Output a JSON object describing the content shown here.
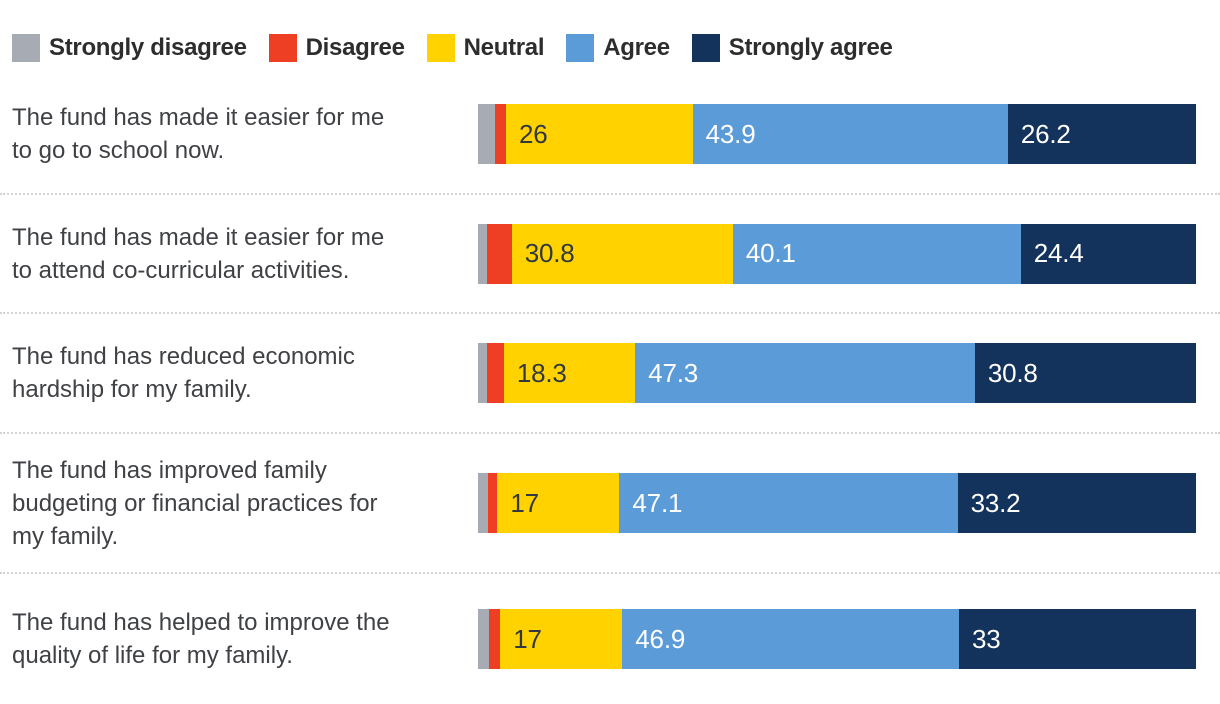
{
  "legend": {
    "items": [
      {
        "name": "strongly-disagree",
        "label": "Strongly disagree",
        "color": "#a6abb4"
      },
      {
        "name": "disagree",
        "label": "Disagree",
        "color": "#ee3e23"
      },
      {
        "name": "neutral",
        "label": "Neutral",
        "color": "#ffd200"
      },
      {
        "name": "agree",
        "label": "Agree",
        "color": "#5b9bd8"
      },
      {
        "name": "strongly-agree",
        "label": "Strongly agree",
        "color": "#14335c"
      }
    ]
  },
  "chart_data": {
    "type": "bar",
    "orientation": "horizontal",
    "stacked": true,
    "unit": "percent",
    "xlim": [
      0,
      100
    ],
    "grid": false,
    "legend_position": "top",
    "series": [
      "Strongly disagree",
      "Disagree",
      "Neutral",
      "Agree",
      "Strongly agree"
    ],
    "series_colors": [
      "#a6abb4",
      "#ee3e23",
      "#ffd200",
      "#5b9bd8",
      "#14335c"
    ],
    "value_label_colors": [
      "",
      "",
      "#32383f",
      "#ffffff",
      "#ffffff"
    ],
    "rows": [
      {
        "label": "The fund has made it easier for me\nto go to school now.",
        "values": [
          2.4,
          1.5,
          26,
          43.9,
          26.2
        ],
        "display_values": [
          "",
          "",
          "26",
          "43.9",
          "26.2"
        ]
      },
      {
        "label": "The fund has made it easier for me\nto attend co-curricular activities.",
        "values": [
          1.3,
          3.4,
          30.8,
          40.1,
          24.4
        ],
        "display_values": [
          "",
          "",
          "30.8",
          "40.1",
          "24.4"
        ]
      },
      {
        "label": "The fund has reduced economic\nhardship for my family.",
        "values": [
          1.2,
          2.4,
          18.3,
          47.3,
          30.8
        ],
        "display_values": [
          "",
          "",
          "18.3",
          "47.3",
          "30.8"
        ]
      },
      {
        "label": "The fund has improved family\nbudgeting or financial practices for\nmy family.",
        "values": [
          1.4,
          1.3,
          17,
          47.1,
          33.2
        ],
        "display_values": [
          "",
          "",
          "17",
          "47.1",
          "33.2"
        ]
      },
      {
        "label": "The fund has helped to improve the\nquality of life for my family.",
        "values": [
          1.6,
          1.5,
          17,
          46.9,
          33
        ],
        "display_values": [
          "",
          "",
          "17",
          "46.9",
          "33"
        ]
      }
    ]
  }
}
